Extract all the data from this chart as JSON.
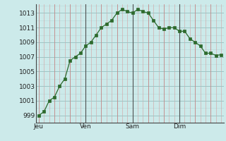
{
  "y_values": [
    999,
    999.5,
    1001,
    1001.5,
    1003,
    1004,
    1006.5,
    1007,
    1007.5,
    1008.5,
    1009,
    1010,
    1011,
    1011.5,
    1012,
    1013,
    1013.5,
    1013.2,
    1013,
    1013.5,
    1013.2,
    1013,
    1012,
    1011,
    1010.8,
    1011,
    1011,
    1010.5,
    1010.5,
    1009.5,
    1009,
    1008.5,
    1007.5,
    1007.5,
    1007.2,
    1007.3
  ],
  "x_tick_positions": [
    0,
    9,
    18,
    27
  ],
  "x_tick_labels": [
    "Jeu",
    "Ven",
    "Sam",
    "Dim"
  ],
  "y_ticks": [
    999,
    1001,
    1003,
    1005,
    1007,
    1009,
    1011,
    1013
  ],
  "ylim": [
    998.0,
    1014.2
  ],
  "xlim": [
    -0.5,
    35.5
  ],
  "line_color": "#2d6a2d",
  "marker_color": "#2d6a2d",
  "bg_color": "#cceaea",
  "grid_color_major_x": "#c08080",
  "grid_color_major_y": "#a0c4c4",
  "grid_color_minor_x": "#d4a0a0",
  "grid_color_minor_y": "#b8d8d8",
  "vline_color": "#505050",
  "vline_positions": [
    9,
    18,
    27
  ],
  "label_fontsize": 6.5,
  "tick_fontsize": 6.5
}
